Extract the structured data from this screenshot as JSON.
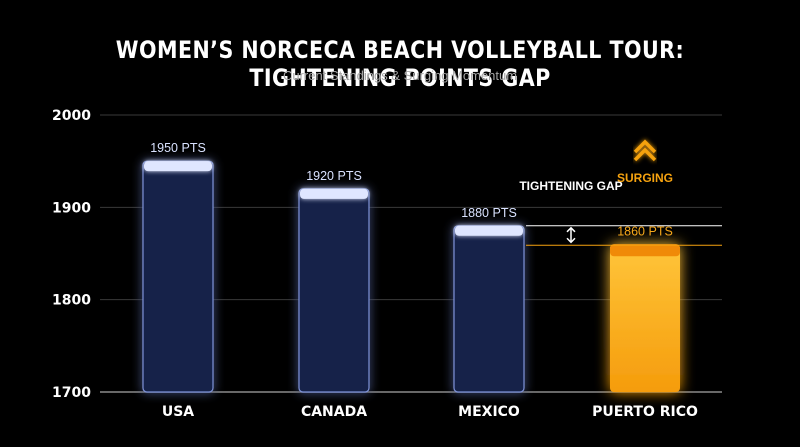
{
  "title": "WOMEN’S NORCECA BEACH VOLLEYBALL TOUR: TIGHTENING POINTS GAP",
  "subtitle": "Current Standings & Surging Momentum",
  "colors": {
    "background": "#000000",
    "bar": "#14204a",
    "bar_edge": "#dfe6ff",
    "highlight": "#f5a20f",
    "gridline": "#3a3a3a",
    "text": "#ffffff"
  },
  "chart_data": {
    "type": "bar",
    "categories": [
      "USA",
      "CANADA",
      "MEXICO",
      "PUERTO RICO"
    ],
    "values": [
      1950,
      1920,
      1880,
      1860
    ],
    "data_labels": [
      "1950 PTS",
      "1920 PTS",
      "1880 PTS",
      "1860 PTS"
    ],
    "highlight_index": 3,
    "ylim": [
      1700,
      2000
    ],
    "yticks": [
      1700,
      1800,
      1900,
      2000
    ],
    "grid": true,
    "annotations": {
      "gap_label": "TIGHTENING GAP",
      "surging_label": "SURGING"
    }
  }
}
